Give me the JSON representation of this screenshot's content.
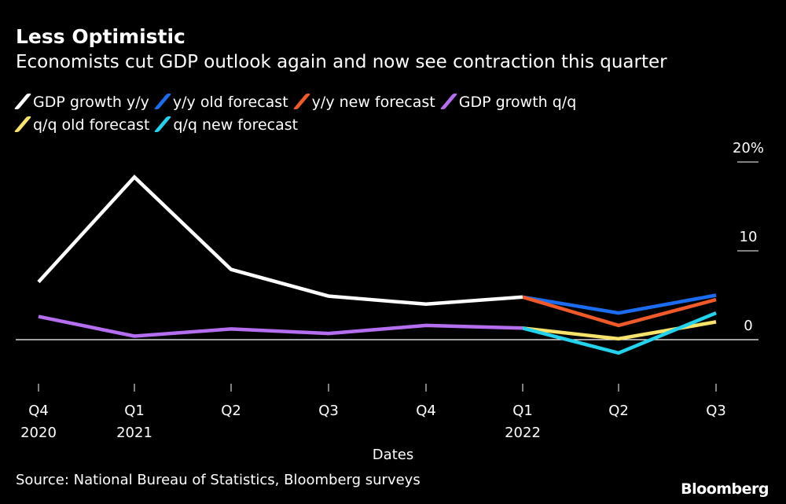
{
  "chart_data": {
    "type": "line",
    "title": "Less Optimistic",
    "subtitle": "Economists cut GDP outlook again and now see contraction this quarter",
    "xlabel": "Dates",
    "ylabel": "",
    "categories": [
      {
        "top": "Q4",
        "bottom": "2020"
      },
      {
        "top": "Q1",
        "bottom": "2021"
      },
      {
        "top": "Q2",
        "bottom": ""
      },
      {
        "top": "Q3",
        "bottom": ""
      },
      {
        "top": "Q4",
        "bottom": ""
      },
      {
        "top": "Q1",
        "bottom": "2022"
      },
      {
        "top": "Q2",
        "bottom": ""
      },
      {
        "top": "Q3",
        "bottom": ""
      }
    ],
    "ylim": [
      -5,
      20
    ],
    "yticks": [
      {
        "value": 0,
        "label": "0"
      },
      {
        "value": 10,
        "label": "10"
      },
      {
        "value": 20,
        "label": "20%"
      }
    ],
    "y_axis_position": "right",
    "grid": false,
    "legend_placement": "top",
    "series": [
      {
        "name": "GDP growth y/y",
        "color": "#ffffff",
        "values": [
          6.5,
          18.3,
          7.9,
          4.9,
          4.0,
          4.8,
          null,
          null
        ]
      },
      {
        "name": "y/y old forecast",
        "color": "#1a6cf0",
        "values": [
          null,
          null,
          null,
          null,
          null,
          4.8,
          3.0,
          5.0
        ]
      },
      {
        "name": "y/y new forecast",
        "color": "#f05a28",
        "values": [
          null,
          null,
          null,
          null,
          null,
          4.8,
          1.6,
          4.5
        ]
      },
      {
        "name": "GDP growth q/q",
        "color": "#b56ef0",
        "values": [
          2.6,
          0.4,
          1.2,
          0.7,
          1.6,
          1.3,
          null,
          null
        ]
      },
      {
        "name": "q/q old forecast",
        "color": "#f8e36a",
        "values": [
          null,
          null,
          null,
          null,
          null,
          1.3,
          0.1,
          2.0
        ]
      },
      {
        "name": "q/q new forecast",
        "color": "#22d3ee",
        "values": [
          null,
          null,
          null,
          null,
          null,
          1.3,
          -1.5,
          3.0
        ]
      }
    ]
  },
  "source": "Source: National Bureau of Statistics, Bloomberg surveys",
  "logo": "Bloomberg"
}
